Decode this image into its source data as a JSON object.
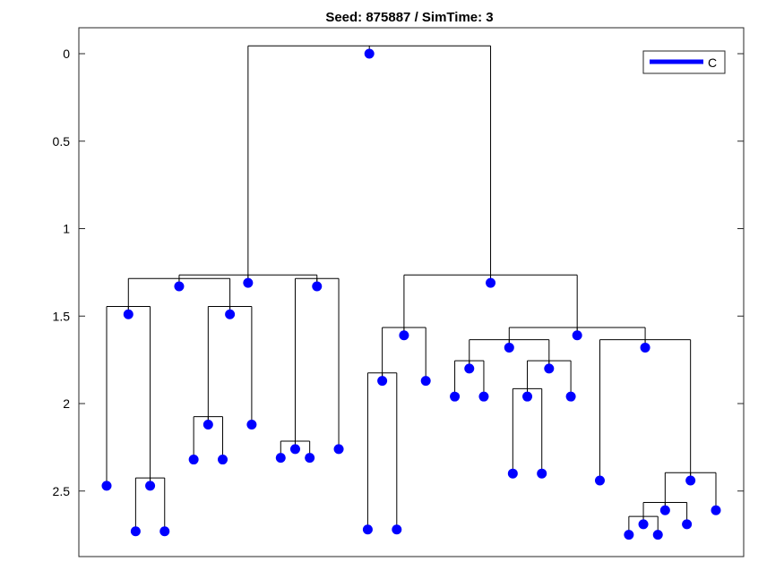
{
  "chart_data": {
    "type": "tree",
    "title": "Seed: 875887 / SimTime: 3",
    "xlabel": "",
    "ylabel": "",
    "ylim": [
      0,
      2.87
    ],
    "y_reversed": true,
    "yticks": [
      {
        "value": 0,
        "label": "0"
      },
      {
        "value": 0.5,
        "label": "0.5"
      },
      {
        "value": 1,
        "label": "1"
      },
      {
        "value": 1.5,
        "label": "1.5"
      },
      {
        "value": 2,
        "label": "2"
      },
      {
        "value": 2.5,
        "label": "2.5"
      }
    ],
    "grid": false,
    "legend": {
      "placement": "top-right",
      "entries": [
        {
          "label": "C",
          "color": "#0000ff"
        }
      ]
    },
    "colors": {
      "node": "#0000ff",
      "edge": "#000000",
      "axes": "#262626"
    },
    "tree": {
      "y": 0.0,
      "children": [
        {
          "y": 1.31,
          "children": [
            {
              "y": 1.33,
              "children": [
                {
                  "y": 1.49,
                  "children": [
                    {
                      "y": 2.47
                    },
                    {
                      "y": 2.47,
                      "children": [
                        {
                          "y": 2.73
                        },
                        {
                          "y": 2.73
                        }
                      ]
                    }
                  ]
                },
                {
                  "y": 1.49,
                  "children": [
                    {
                      "y": 2.12,
                      "children": [
                        {
                          "y": 2.32
                        },
                        {
                          "y": 2.32
                        }
                      ]
                    },
                    {
                      "y": 2.12
                    }
                  ]
                }
              ]
            },
            {
              "y": 1.33,
              "children": [
                {
                  "y": 2.26,
                  "children": [
                    {
                      "y": 2.31
                    },
                    {
                      "y": 2.31
                    }
                  ]
                },
                {
                  "y": 2.26
                }
              ]
            }
          ]
        },
        {
          "y": 1.31,
          "children": [
            {
              "y": 1.61,
              "children": [
                {
                  "y": 1.87,
                  "children": [
                    {
                      "y": 2.72
                    },
                    {
                      "y": 2.72
                    }
                  ]
                },
                {
                  "y": 1.87
                }
              ]
            },
            {
              "y": 1.61,
              "children": [
                {
                  "y": 1.68,
                  "children": [
                    {
                      "y": 1.8,
                      "children": [
                        {
                          "y": 1.96
                        },
                        {
                          "y": 1.96
                        }
                      ]
                    },
                    {
                      "y": 1.8,
                      "children": [
                        {
                          "y": 1.96,
                          "children": [
                            {
                              "y": 2.4
                            },
                            {
                              "y": 2.4
                            }
                          ]
                        },
                        {
                          "y": 1.96
                        }
                      ]
                    }
                  ]
                },
                {
                  "y": 1.68,
                  "children": [
                    {
                      "y": 2.44
                    },
                    {
                      "y": 2.44,
                      "children": [
                        {
                          "y": 2.61,
                          "children": [
                            {
                              "y": 2.69,
                              "children": [
                                {
                                  "y": 2.75
                                },
                                {
                                  "y": 2.75
                                }
                              ]
                            },
                            {
                              "y": 2.69
                            }
                          ]
                        },
                        {
                          "y": 2.61
                        }
                      ]
                    }
                  ]
                }
              ]
            }
          ]
        }
      ]
    }
  }
}
